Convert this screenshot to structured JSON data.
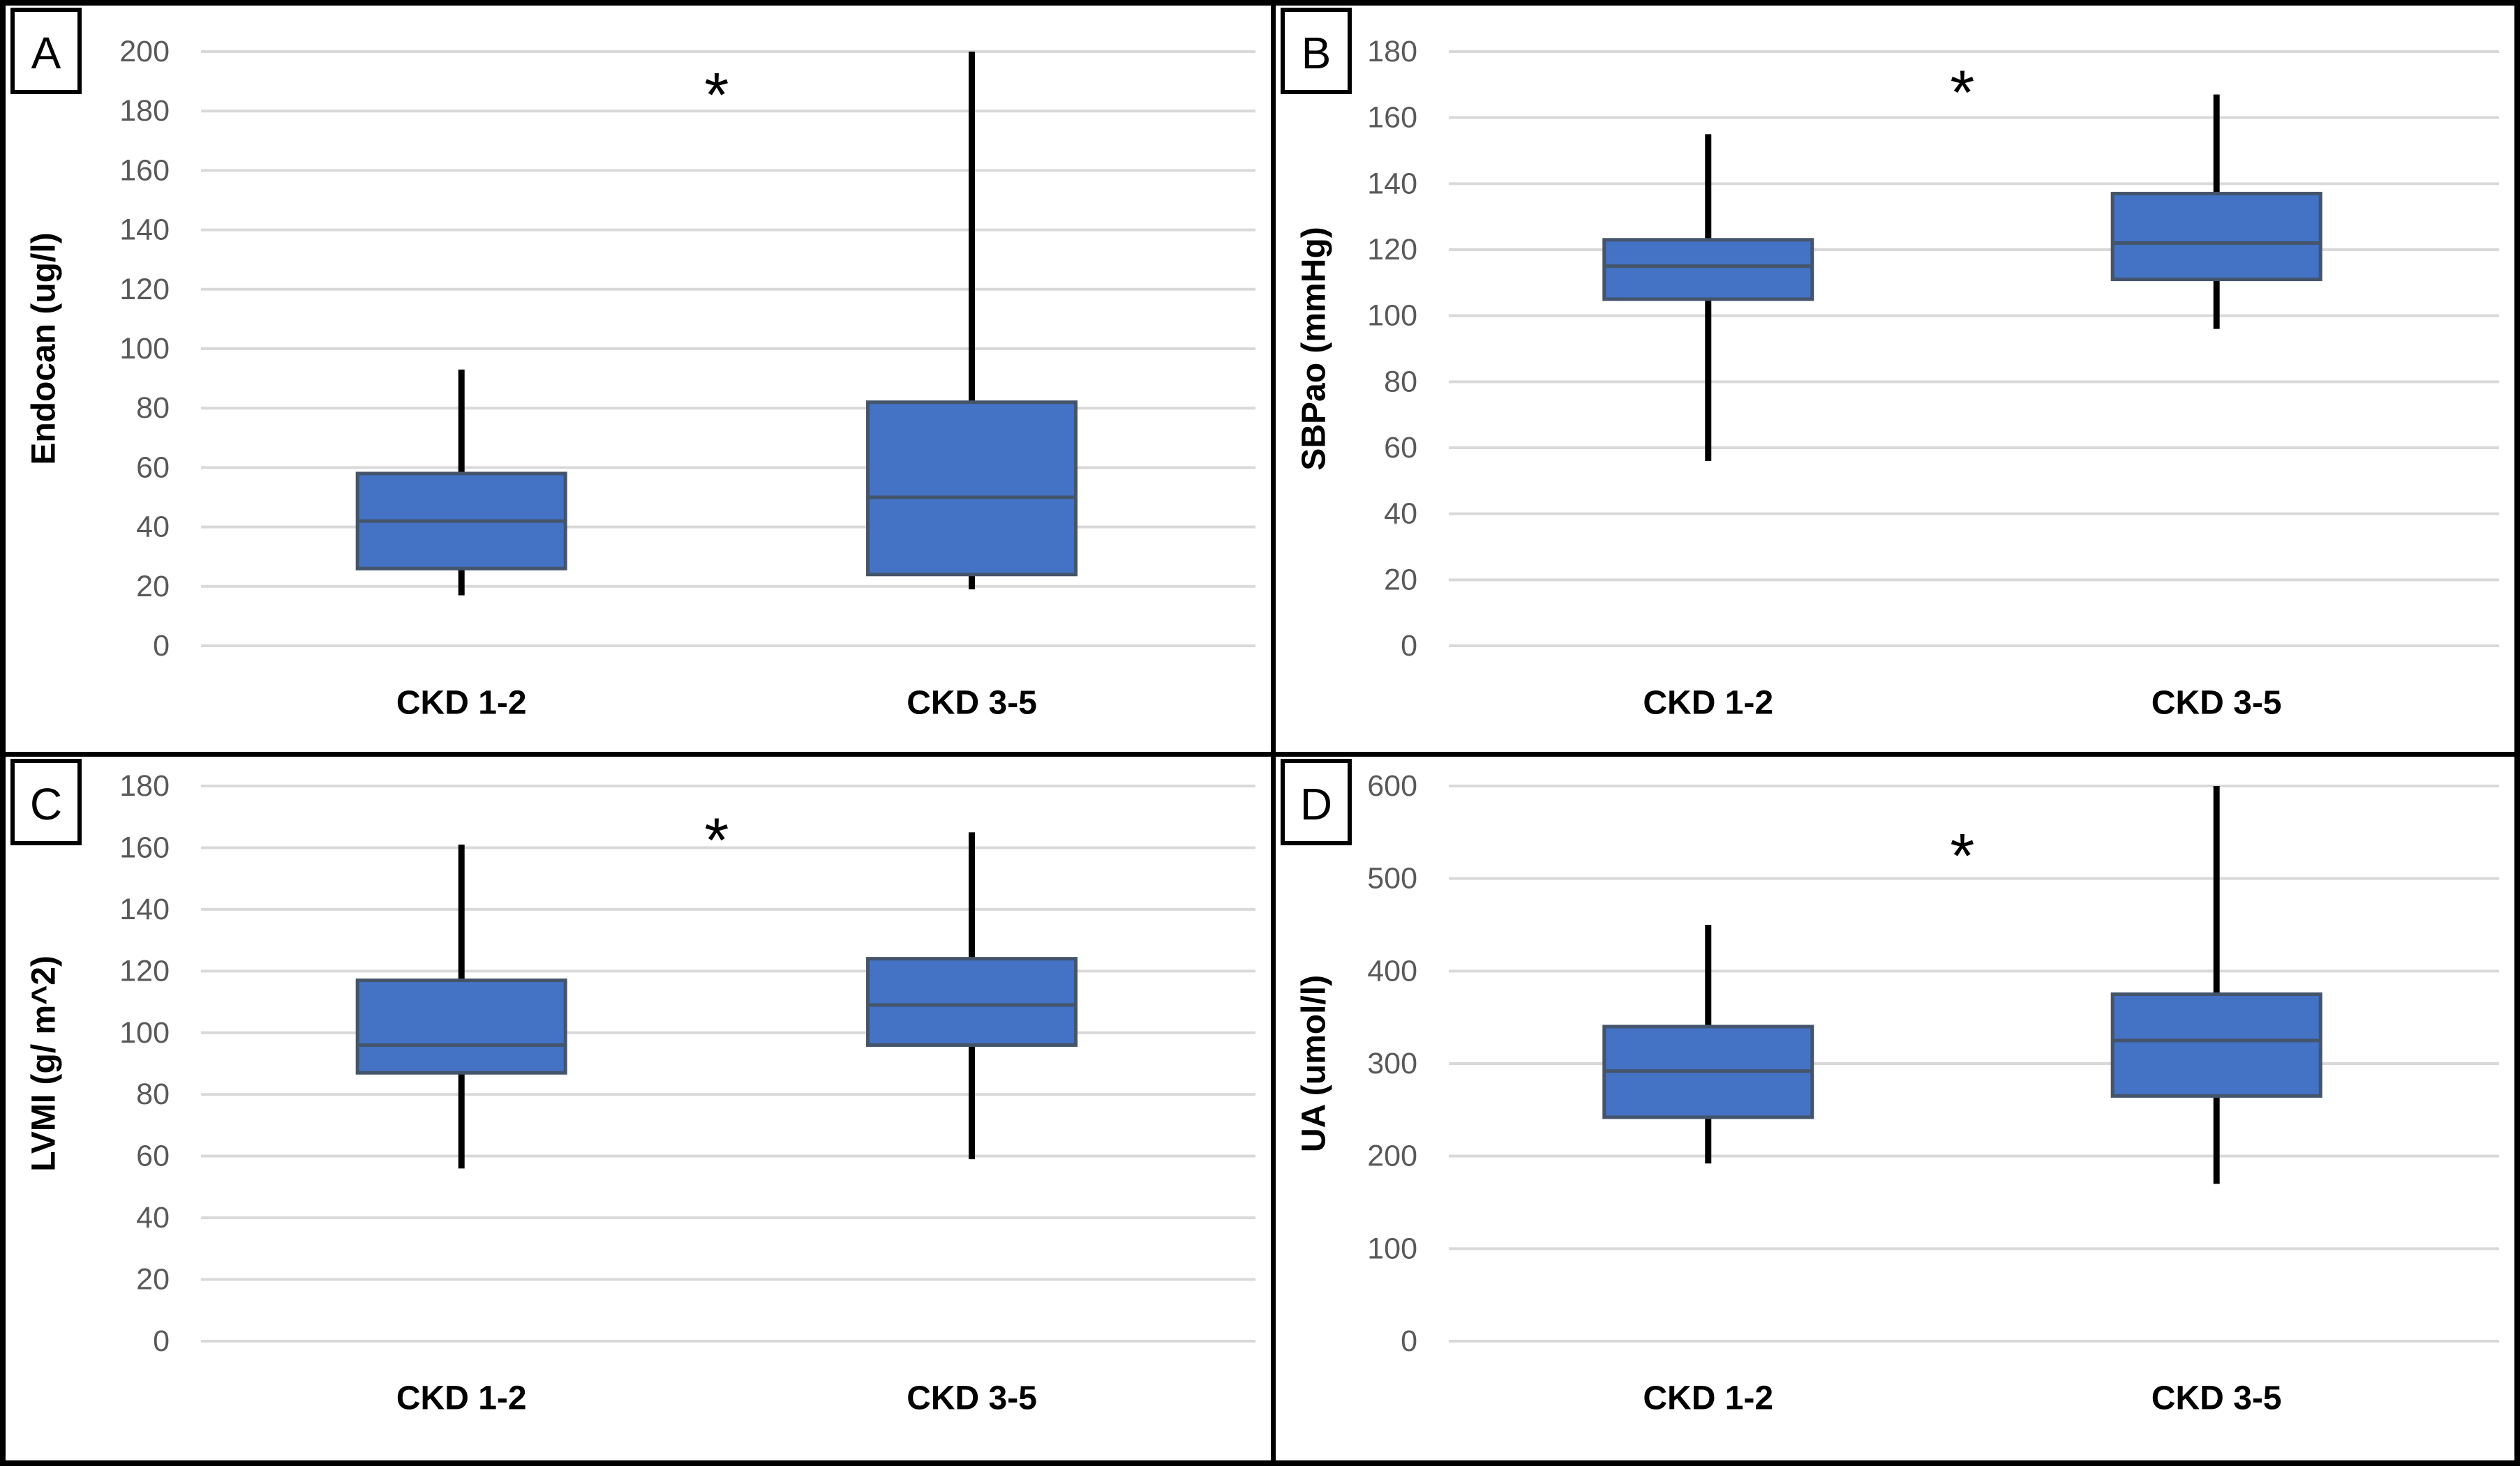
{
  "figure": {
    "title": "",
    "colors": {
      "box_fill": "#4472C4",
      "box_border": "#44546A",
      "median_line": "#44546A",
      "whisker": "#000000",
      "gridline": "#D9D9D9",
      "tick_text": "#595959",
      "label_text": "#000000",
      "panel_border": "#000000"
    }
  },
  "chart_data": [
    {
      "type": "boxplot",
      "panel_label": "A",
      "ylabel": "Endocan (ug/l)",
      "xlabel": "",
      "ylim": [
        0,
        200
      ],
      "y_step": 20,
      "y_ticks": [
        0,
        20,
        40,
        60,
        80,
        100,
        120,
        140,
        160,
        180,
        200
      ],
      "grid": "horizontal",
      "legend": "none",
      "categories": [
        "CKD 1-2",
        "CKD 3-5"
      ],
      "series": [
        {
          "category": "CKD 1-2",
          "whisker_low": 17,
          "q1": 26,
          "median": 42,
          "q3": 58,
          "whisker_high": 93
        },
        {
          "category": "CKD 3-5",
          "whisker_low": 19,
          "q1": 24,
          "median": 50,
          "q3": 82,
          "whisker_high": 200
        }
      ],
      "significance_marker": "*",
      "significance_marker_y": 188
    },
    {
      "type": "boxplot",
      "panel_label": "B",
      "ylabel": "SBPao (mmHg)",
      "xlabel": "",
      "ylim": [
        0,
        180
      ],
      "y_step": 20,
      "y_ticks": [
        0,
        20,
        40,
        60,
        80,
        100,
        120,
        140,
        160,
        180
      ],
      "grid": "horizontal",
      "legend": "none",
      "categories": [
        "CKD 1-2",
        "CKD 3-5"
      ],
      "series": [
        {
          "category": "CKD 1-2",
          "whisker_low": 56,
          "q1": 105,
          "median": 115,
          "q3": 123,
          "whisker_high": 155
        },
        {
          "category": "CKD 3-5",
          "whisker_low": 96,
          "q1": 111,
          "median": 122,
          "q3": 137,
          "whisker_high": 167
        }
      ],
      "significance_marker": "*",
      "significance_marker_y": 170
    },
    {
      "type": "boxplot",
      "panel_label": "C",
      "ylabel": "LVMI (g/ m^2)",
      "xlabel": "",
      "ylim": [
        0,
        180
      ],
      "y_step": 20,
      "y_ticks": [
        0,
        20,
        40,
        60,
        80,
        100,
        120,
        140,
        160,
        180
      ],
      "grid": "horizontal",
      "legend": "none",
      "categories": [
        "CKD 1-2",
        "CKD 3-5"
      ],
      "series": [
        {
          "category": "CKD 1-2",
          "whisker_low": 56,
          "q1": 87,
          "median": 96,
          "q3": 117,
          "whisker_high": 161
        },
        {
          "category": "CKD 3-5",
          "whisker_low": 59,
          "q1": 96,
          "median": 109,
          "q3": 124,
          "whisker_high": 165
        }
      ],
      "significance_marker": "*",
      "significance_marker_y": 165
    },
    {
      "type": "boxplot",
      "panel_label": "D",
      "ylabel": "UA (umol/l)",
      "xlabel": "",
      "ylim": [
        0,
        600
      ],
      "y_step": 100,
      "y_ticks": [
        0,
        100,
        200,
        300,
        400,
        500,
        600
      ],
      "grid": "horizontal",
      "legend": "none",
      "categories": [
        "CKD 1-2",
        "CKD 3-5"
      ],
      "series": [
        {
          "category": "CKD 1-2",
          "whisker_low": 192,
          "q1": 242,
          "median": 292,
          "q3": 340,
          "whisker_high": 450
        },
        {
          "category": "CKD 3-5",
          "whisker_low": 170,
          "q1": 265,
          "median": 325,
          "q3": 375,
          "whisker_high": 600
        }
      ],
      "significance_marker": "*",
      "significance_marker_y": 533
    }
  ]
}
